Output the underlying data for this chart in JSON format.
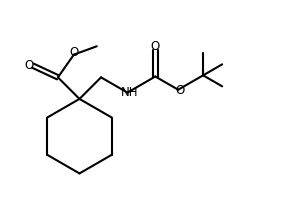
{
  "background_color": "#ffffff",
  "line_color": "#000000",
  "line_width": 1.5,
  "figsize": [
    3.08,
    2.08
  ],
  "dpi": 100,
  "xlim": [
    -0.5,
    8.5
  ],
  "ylim": [
    -0.3,
    5.8
  ]
}
